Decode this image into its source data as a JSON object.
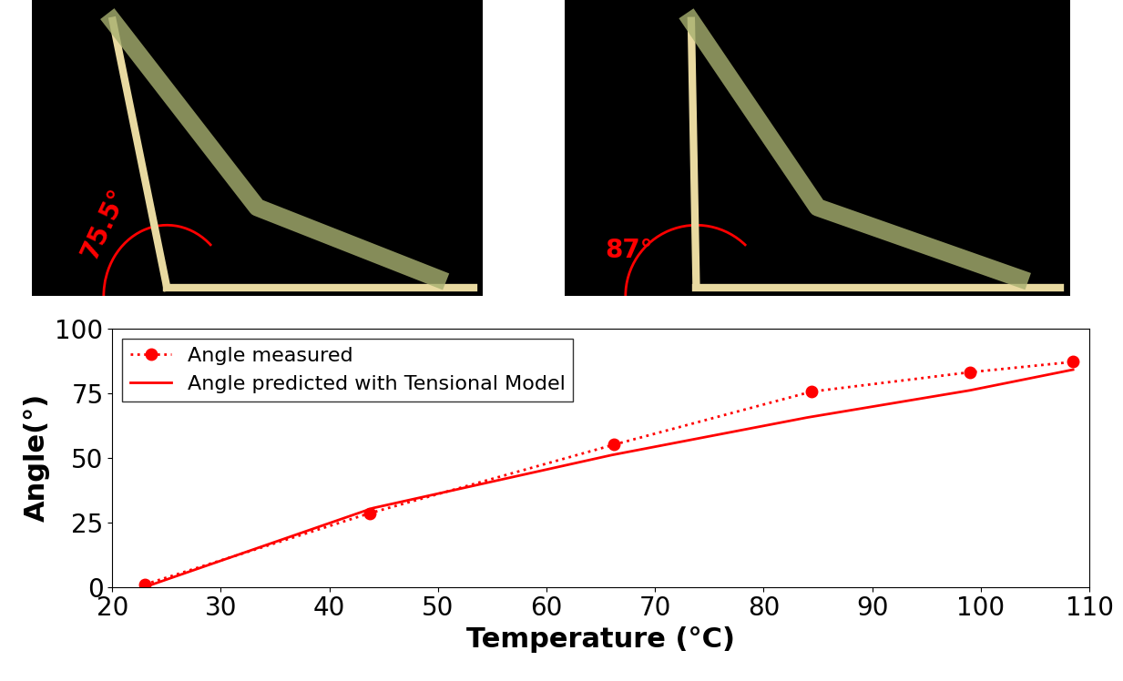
{
  "panels": [
    {
      "label": "75.5°"
    },
    {
      "label": "87°"
    }
  ],
  "chart_data": {
    "type": "line",
    "x_label": "Temperature (°C)",
    "y_label": "Angle(°)",
    "xlim": [
      20,
      110
    ],
    "xticks": [
      20,
      30,
      40,
      50,
      60,
      70,
      80,
      90,
      100,
      110
    ],
    "ylim": [
      0,
      100
    ],
    "yticks": [
      0,
      25,
      50,
      75,
      100
    ],
    "legend": "upper left",
    "grid": false,
    "series": [
      {
        "name": "Angle measured",
        "color": "#ff0000",
        "marker": "o",
        "line_style": "dotted",
        "x": [
          23,
          43.7,
          66.2,
          84.4,
          99,
          108.5
        ],
        "values": [
          1,
          28.5,
          55,
          75.5,
          83,
          87
        ]
      },
      {
        "name": "Angle predicted with Tensional Model",
        "color": "#ff0000",
        "marker": "none",
        "line_style": "solid",
        "x": [
          23,
          44,
          66,
          84,
          99,
          108.5
        ],
        "values": [
          0,
          30.5,
          51,
          65.5,
          76,
          84
        ]
      }
    ]
  }
}
